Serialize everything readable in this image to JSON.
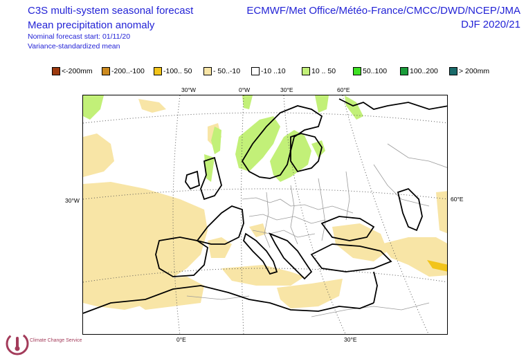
{
  "header": {
    "title_line1": "C3S multi-system seasonal forecast",
    "title_line2": "Mean precipitation anomaly",
    "nominal_start": "Nominal forecast start: 01/11/20",
    "method": "Variance-standardized mean",
    "providers": "ECMWF/Met Office/Météo-France/CMCC/DWD/NCEP/JMA",
    "season": "DJF 2020/21"
  },
  "legend": {
    "items": [
      {
        "label": "<-200mm",
        "color": "#9c3a0f"
      },
      {
        "label": "-200..-100",
        "color": "#cc8a1f"
      },
      {
        "label": "-100.. 50",
        "color": "#f2c41a"
      },
      {
        "label": "- 50..-10",
        "color": "#f8e5a6"
      },
      {
        "label": "-10 ..10",
        "color": "#ffffff"
      },
      {
        "label": "10 .. 50",
        "color": "#c2f078"
      },
      {
        "label": "50..100",
        "color": "#3ee024"
      },
      {
        "label": "100..200",
        "color": "#1a9b3a"
      },
      {
        "label": "> 200mm",
        "color": "#1a6b6b"
      }
    ]
  },
  "map": {
    "coord_labels": {
      "top_30w": "30°W",
      "top_0w": "0°W",
      "top_30e": "30°E",
      "top_60e": "60°E",
      "left_30w": "30°W",
      "right_60e": "60°E",
      "bottom_0e": "0°E",
      "bottom_30e": "30°E"
    },
    "colors": {
      "dry": "#f8e5a6",
      "dry_strong": "#f2c41a",
      "wet": "#c2f078",
      "coast": "#000000",
      "border": "#9a9a9a",
      "grid": "#555555"
    }
  },
  "logo": {
    "name": "Climate Change Service"
  }
}
